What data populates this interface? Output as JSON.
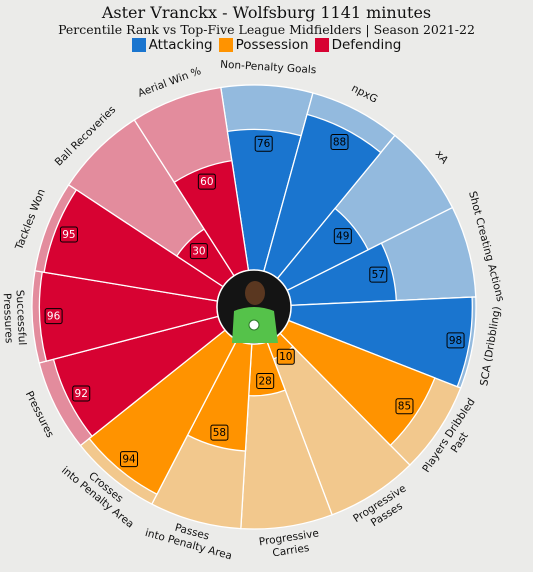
{
  "title": "Aster Vranckx - Wolfsburg 1141 minutes",
  "subtitle": "Percentile Rank vs Top-Five League Midfielders | Season 2021-22",
  "legend": [
    {
      "label": "Attacking",
      "color": "#1a75cf"
    },
    {
      "label": "Possession",
      "color": "#ff9300"
    },
    {
      "label": "Defending",
      "color": "#d70232"
    }
  ],
  "colors": {
    "Attacking": {
      "bar": "#1a75cf",
      "bg": "#93bade"
    },
    "Possession": {
      "bar": "#ff9300",
      "bg": "#f2c88d"
    },
    "Defending": {
      "bar": "#d70232",
      "bg": "#e38c9d"
    }
  },
  "chart_data": {
    "type": "radial-bar",
    "title": "Aster Vranckx - Wolfsburg 1141 minutes",
    "subtitle": "Percentile Rank vs Top-Five League Midfielders | Season 2021-22",
    "range": [
      0,
      100
    ],
    "legend_position": "top",
    "series": [
      {
        "label": "Non-Penalty Goals",
        "value": 76,
        "group": "Attacking"
      },
      {
        "label": "npxG",
        "value": 88,
        "group": "Attacking"
      },
      {
        "label": "xA",
        "value": 49,
        "group": "Attacking"
      },
      {
        "label": "Shot Creating Actions",
        "value": 57,
        "group": "Attacking"
      },
      {
        "label": "SCA (Dribbling)",
        "value": 98,
        "group": "Attacking"
      },
      {
        "label": "Players Dribbled Past",
        "value": 85,
        "group": "Possession"
      },
      {
        "label": "Progressive Passes",
        "value": 10,
        "group": "Possession"
      },
      {
        "label": "Progressive Carries",
        "value": 28,
        "group": "Possession"
      },
      {
        "label": "Passes into Penalty Area",
        "value": 58,
        "group": "Possession"
      },
      {
        "label": "Crosses into Penalty Area",
        "value": 94,
        "group": "Possession"
      },
      {
        "label": "Pressures",
        "value": 92,
        "group": "Defending"
      },
      {
        "label": "Successful Pressures",
        "value": 96,
        "group": "Defending"
      },
      {
        "label": "Tackles Won",
        "value": 95,
        "group": "Defending"
      },
      {
        "label": "Ball Recoveries",
        "value": 30,
        "group": "Defending"
      },
      {
        "label": "Aerial Win %",
        "value": 60,
        "group": "Defending"
      }
    ]
  }
}
